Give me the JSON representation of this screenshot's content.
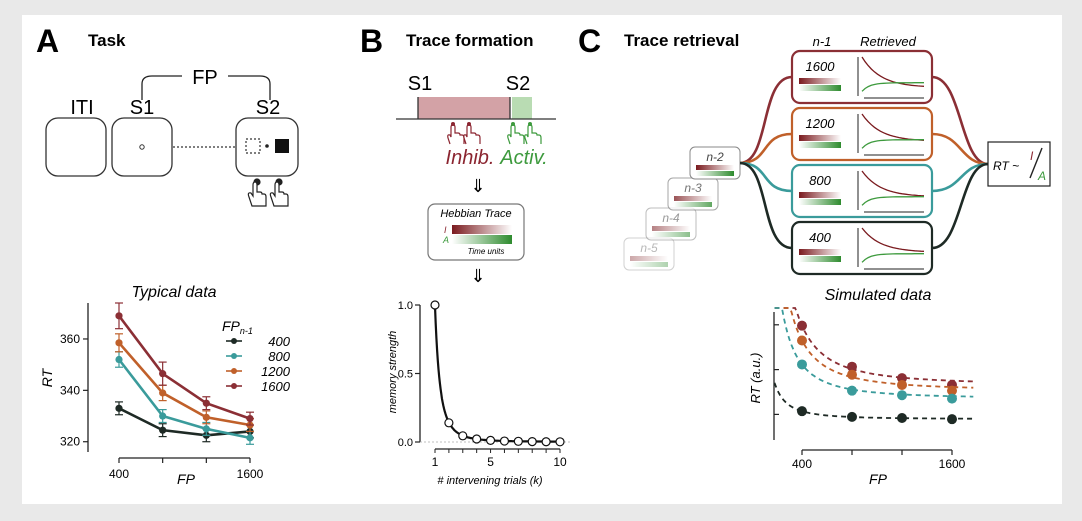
{
  "panels": {
    "a": {
      "letter": "A",
      "title": "Task",
      "fp_label": "FP",
      "iti_label": "ITI",
      "s1_label": "S1",
      "s2_label": "S2"
    },
    "b": {
      "letter": "B",
      "title": "Trace formation",
      "s1_label": "S1",
      "s2_label": "S2",
      "inhib_label": "Inhib.",
      "activ_label": "Activ.",
      "arrow_glyph": "⇓",
      "hebbian_title": "Hebbian Trace",
      "i_label": "I",
      "a_label": "A",
      "time_units": "Time units"
    },
    "c": {
      "letter": "C",
      "title": "Trace retrieval",
      "col_n1": "n-1",
      "col_retrieved": "Retrieved",
      "rows": [
        {
          "value": "1600",
          "color": "#8b2f35"
        },
        {
          "value": "1200",
          "color": "#c0602a"
        },
        {
          "value": "800",
          "color": "#3a9b9b"
        },
        {
          "value": "400",
          "color": "#1e2a25"
        }
      ],
      "stack_cards": [
        "n-2",
        "n-3",
        "n-4",
        "n-5"
      ],
      "formula_prefix": "RT ~",
      "formula_num": "I",
      "formula_den": "A"
    }
  },
  "chart_data": [
    {
      "type": "line",
      "title": "Typical data",
      "xlabel": "FP",
      "ylabel": "RT",
      "x": [
        400,
        800,
        1200,
        1600
      ],
      "xticks": [
        "400",
        "1600"
      ],
      "yticks": [
        "320",
        "340",
        "360"
      ],
      "ylim": [
        316,
        374
      ],
      "legend_title": "FP",
      "legend_sub": "n-1",
      "series": [
        {
          "name": "400",
          "color": "#1e2a25",
          "values": [
            333,
            324.5,
            322.5,
            324
          ],
          "err": [
            2.5,
            2.5,
            2.5,
            2.5
          ]
        },
        {
          "name": "800",
          "color": "#3a9b9b",
          "values": [
            352,
            330,
            325,
            321.5
          ],
          "err": [
            3,
            2.5,
            2.5,
            2.5
          ]
        },
        {
          "name": "1200",
          "color": "#c0602a",
          "values": [
            358.5,
            339,
            329.5,
            326.5
          ],
          "err": [
            3.5,
            3,
            2.5,
            2.5
          ]
        },
        {
          "name": "1600",
          "color": "#8b2f35",
          "values": [
            369,
            346.5,
            335,
            329
          ],
          "err": [
            5,
            4.5,
            2.5,
            2.5
          ]
        }
      ]
    },
    {
      "type": "line",
      "title": "",
      "xlabel": "# intervening trials (k)",
      "ylabel": "memory strength",
      "x": [
        1,
        2,
        3,
        4,
        5,
        6,
        7,
        8,
        9,
        10
      ],
      "values": [
        1.0,
        0.14,
        0.045,
        0.022,
        0.012,
        0.007,
        0.005,
        0.003,
        0.002,
        0.0015
      ],
      "xticks": [
        "1",
        "5",
        "10"
      ],
      "yticks": [
        "0.0",
        "0.5",
        "1.0"
      ],
      "ylim": [
        0,
        1
      ]
    },
    {
      "type": "scatter",
      "title": "Simulated data",
      "xlabel": "FP",
      "ylabel": "RT (a.u.)",
      "x": [
        400,
        800,
        1200,
        1600
      ],
      "xticks": [
        "400",
        "1600"
      ],
      "series": [
        {
          "name": "1600",
          "color": "#8b2f35",
          "values": [
            0.88,
            0.52,
            0.42,
            0.36
          ]
        },
        {
          "name": "1200",
          "color": "#c0602a",
          "values": [
            0.75,
            0.45,
            0.36,
            0.31
          ]
        },
        {
          "name": "800",
          "color": "#3a9b9b",
          "values": [
            0.54,
            0.31,
            0.27,
            0.24
          ]
        },
        {
          "name": "400",
          "color": "#1e2a25",
          "values": [
            0.13,
            0.08,
            0.07,
            0.06
          ]
        }
      ]
    }
  ]
}
